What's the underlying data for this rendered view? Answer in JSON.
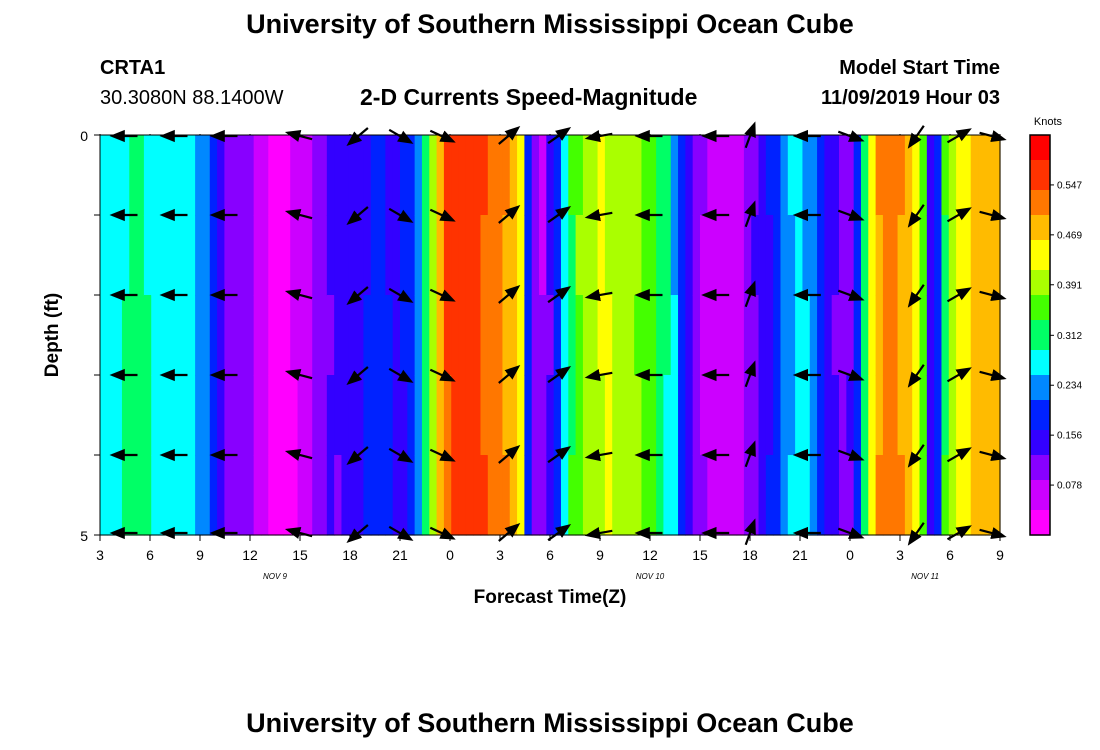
{
  "page": {
    "title_top": "University of Southern Mississippi Ocean Cube",
    "title_bottom": "University of Southern Mississippi Ocean Cube",
    "station": "CRTA1",
    "location": "30.3080N 88.1400W",
    "plot_title": "2-D Currents Speed-Magnitude",
    "model_start_label": "Model Start Time",
    "model_start_value": "11/09/2019 Hour 03"
  },
  "chart_data": {
    "type": "heatmap",
    "title": "2-D Currents Speed-Magnitude",
    "xlabel": "Forecast Time(Z)",
    "ylabel": "Depth (ft)",
    "x_ticks": [
      "3",
      "6",
      "9",
      "12",
      "15",
      "18",
      "21",
      "0",
      "3",
      "6",
      "9",
      "12",
      "15",
      "18",
      "21",
      "0",
      "3",
      "6",
      "9"
    ],
    "x_range_hours": [
      0,
      54
    ],
    "date_labels": [
      {
        "text": "NOV 9",
        "hour": 10.5
      },
      {
        "text": "NOV 10",
        "hour": 33
      },
      {
        "text": "NOV 11",
        "hour": 49.5
      }
    ],
    "y_ticks": [
      "0",
      "5"
    ],
    "y_range": [
      0,
      5
    ],
    "colorbar": {
      "unit": "Knots",
      "min": 0.0,
      "max": 0.625,
      "tick_labels": [
        "0.078",
        "0.156",
        "0.234",
        "0.312",
        "0.391",
        "0.469",
        "0.547"
      ],
      "colors": [
        "#ff00ff",
        "#cc00ff",
        "#8800ff",
        "#3300ff",
        "#0022ff",
        "#0088ff",
        "#00ffff",
        "#00ff66",
        "#44ff00",
        "#aaff00",
        "#ffff00",
        "#ffbb00",
        "#ff7700",
        "#ff3300",
        "#ff0000"
      ]
    },
    "depth_levels": 5,
    "speed_profile": [
      0.27,
      0.28,
      0.28,
      0.29,
      0.3,
      0.3,
      0.29,
      0.28,
      0.27,
      0.28,
      0.28,
      0.27,
      0.26,
      0.24,
      0.22,
      0.19,
      0.14,
      0.11,
      0.11,
      0.1,
      0.09,
      0.07,
      0.05,
      0.03,
      0.02,
      0.02,
      0.04,
      0.06,
      0.07,
      0.09,
      0.11,
      0.13,
      0.13,
      0.14,
      0.15,
      0.16,
      0.17,
      0.18,
      0.18,
      0.17,
      0.16,
      0.17,
      0.19,
      0.24,
      0.3,
      0.4,
      0.48,
      0.54,
      0.56,
      0.57,
      0.56,
      0.55,
      0.54,
      0.53,
      0.52,
      0.5,
      0.47,
      0.43,
      0.2,
      0.1,
      0.08,
      0.13,
      0.2,
      0.28,
      0.33,
      0.37,
      0.4,
      0.41,
      0.42,
      0.42,
      0.41,
      0.4,
      0.39,
      0.38,
      0.36,
      0.34,
      0.32,
      0.29,
      0.25,
      0.2,
      0.15,
      0.11,
      0.08,
      0.06,
      0.05,
      0.05,
      0.06,
      0.07,
      0.09,
      0.12,
      0.15,
      0.17,
      0.2,
      0.23,
      0.25,
      0.26,
      0.25,
      0.22,
      0.19,
      0.16,
      0.13,
      0.11,
      0.12,
      0.18,
      0.3,
      0.44,
      0.5,
      0.52,
      0.51,
      0.5,
      0.48,
      0.45,
      0.36,
      0.15,
      0.2,
      0.33,
      0.4,
      0.43,
      0.45,
      0.47,
      0.48,
      0.49,
      0.49
    ],
    "vector_hours": [
      1.5,
      4.5,
      7.5,
      12,
      15.5,
      18,
      20.5,
      24.5,
      27.5,
      30,
      33,
      37,
      39,
      42.5,
      45,
      49,
      51.5,
      53.5
    ],
    "vector_angles_deg": [
      180,
      180,
      180,
      165,
      220,
      330,
      335,
      40,
      35,
      190,
      180,
      180,
      70,
      180,
      340,
      235,
      30,
      345
    ],
    "vector_length": 0.9
  }
}
